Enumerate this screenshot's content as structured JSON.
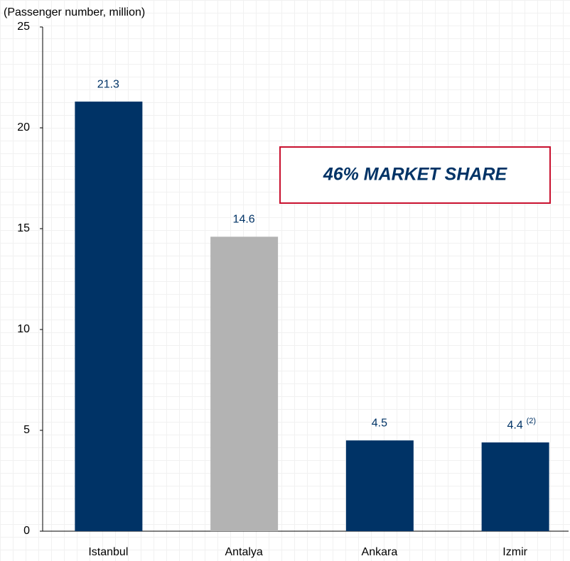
{
  "chart_data": {
    "type": "bar",
    "y_label": "(Passenger number, million)",
    "categories": [
      "Istanbul",
      "Antalya",
      "Ankara",
      "Izmir"
    ],
    "values": [
      21.3,
      14.6,
      4.5,
      4.4
    ],
    "colors": [
      "#003366",
      "#b3b3b3",
      "#003366",
      "#003366"
    ],
    "ylim": [
      0,
      25
    ],
    "yticks": [
      0,
      5,
      10,
      15,
      20,
      25
    ],
    "grid": false,
    "annotations": [
      {
        "text": "(2)",
        "category": "Izmir"
      },
      {
        "text": "46% MARKET SHARE"
      }
    ]
  }
}
